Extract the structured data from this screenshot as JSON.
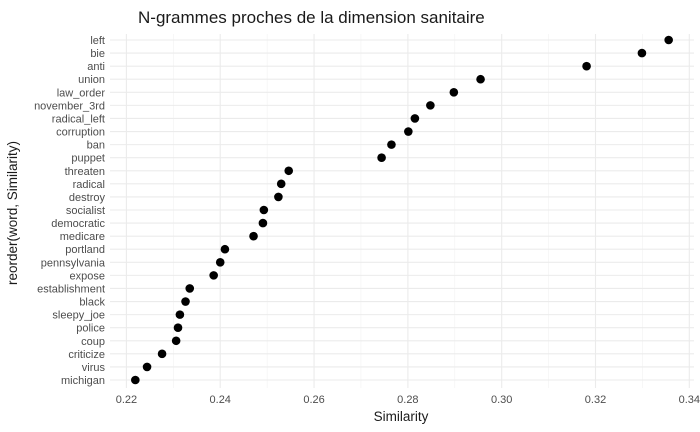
{
  "chart_data": {
    "type": "scatter",
    "title": "N-grammes proches de la dimension sanitaire",
    "xlabel": "Similarity",
    "ylabel": "reorder(word, Similarity)",
    "xlim": [
      0.2165,
      0.341
    ],
    "xticks": [
      0.22,
      0.24,
      0.26,
      0.28,
      0.3,
      0.32,
      0.34
    ],
    "xtick_labels": [
      "0.22",
      "0.24",
      "0.26",
      "0.28",
      "0.30",
      "0.32",
      "0.34"
    ],
    "grid": true,
    "legend": "none",
    "point_color": "#000000",
    "categories": [
      "michigan",
      "virus",
      "criticize",
      "coup",
      "police",
      "sleepy_joe",
      "black",
      "establishment",
      "expose",
      "pennsylvania",
      "portland",
      "medicare",
      "democratic",
      "socialist",
      "destroy",
      "radical",
      "threaten",
      "puppet",
      "ban",
      "corruption",
      "radical_left",
      "november_3rd",
      "law_order",
      "union",
      "anti",
      "bie",
      "left"
    ],
    "values": [
      0.2219,
      0.2244,
      0.2276,
      0.2306,
      0.231,
      0.2314,
      0.2326,
      0.2335,
      0.2386,
      0.24,
      0.241,
      0.2471,
      0.2491,
      0.2493,
      0.2524,
      0.253,
      0.2546,
      0.2744,
      0.2765,
      0.2801,
      0.2815,
      0.2848,
      0.2898,
      0.2955,
      0.3181,
      0.3299,
      0.3356
    ]
  }
}
